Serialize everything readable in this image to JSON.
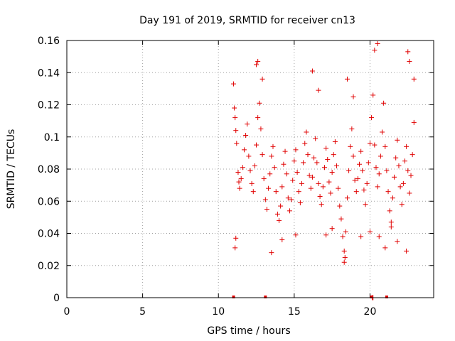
{
  "chart_data": {
    "type": "scatter",
    "title": "Day 191 of 2019, SRMTID for receiver cn13",
    "xlabel": "GPS time / hours",
    "ylabel": "SRMTID / TECUs",
    "xlim": [
      0,
      24.2
    ],
    "ylim": [
      0,
      0.16
    ],
    "x_ticks": [
      0,
      5,
      10,
      15,
      20
    ],
    "x_tick_labels": [
      "0",
      "5",
      "10",
      "15",
      "20"
    ],
    "y_ticks": [
      0,
      0.02,
      0.04,
      0.06,
      0.08,
      0.1,
      0.12,
      0.14,
      0.16
    ],
    "y_tick_labels": [
      "0",
      "0.02",
      "0.04",
      "0.06",
      "0.08",
      "0.1",
      "0.12",
      "0.14",
      "0.16"
    ],
    "grid": true,
    "marker": "plus",
    "color": "#e00000",
    "series": [
      {
        "name": "SRMTID",
        "points": [
          [
            11.0,
            0.133
          ],
          [
            11.05,
            0.118
          ],
          [
            11.1,
            0.112
          ],
          [
            11.15,
            0.104
          ],
          [
            11.2,
            0.096
          ],
          [
            11.3,
            0.078
          ],
          [
            11.35,
            0.072
          ],
          [
            11.4,
            0.068
          ],
          [
            11.5,
            0.074
          ],
          [
            11.6,
            0.081
          ],
          [
            11.7,
            0.092
          ],
          [
            11.8,
            0.101
          ],
          [
            11.9,
            0.108
          ],
          [
            12.0,
            0.088
          ],
          [
            12.1,
            0.079
          ],
          [
            12.2,
            0.071
          ],
          [
            12.3,
            0.066
          ],
          [
            12.4,
            0.082
          ],
          [
            12.5,
            0.095
          ],
          [
            12.6,
            0.112
          ],
          [
            12.7,
            0.121
          ],
          [
            12.8,
            0.105
          ],
          [
            12.9,
            0.089
          ],
          [
            13.0,
            0.074
          ],
          [
            13.1,
            0.061
          ],
          [
            13.2,
            0.055
          ],
          [
            13.3,
            0.068
          ],
          [
            13.4,
            0.077
          ],
          [
            13.5,
            0.088
          ],
          [
            13.6,
            0.094
          ],
          [
            13.7,
            0.081
          ],
          [
            13.8,
            0.066
          ],
          [
            13.9,
            0.052
          ],
          [
            14.0,
            0.048
          ],
          [
            14.1,
            0.057
          ],
          [
            14.2,
            0.069
          ],
          [
            14.3,
            0.083
          ],
          [
            14.4,
            0.091
          ],
          [
            14.5,
            0.077
          ],
          [
            14.6,
            0.062
          ],
          [
            14.7,
            0.054
          ],
          [
            14.8,
            0.061
          ],
          [
            14.9,
            0.073
          ],
          [
            15.0,
            0.085
          ],
          [
            15.1,
            0.092
          ],
          [
            15.2,
            0.078
          ],
          [
            15.3,
            0.066
          ],
          [
            15.4,
            0.059
          ],
          [
            15.5,
            0.071
          ],
          [
            15.6,
            0.084
          ],
          [
            15.7,
            0.096
          ],
          [
            15.8,
            0.103
          ],
          [
            15.9,
            0.089
          ],
          [
            16.0,
            0.076
          ],
          [
            16.1,
            0.068
          ],
          [
            16.2,
            0.075
          ],
          [
            16.3,
            0.087
          ],
          [
            16.4,
            0.099
          ],
          [
            16.5,
            0.084
          ],
          [
            16.6,
            0.071
          ],
          [
            16.7,
            0.063
          ],
          [
            16.8,
            0.058
          ],
          [
            16.9,
            0.069
          ],
          [
            17.0,
            0.081
          ],
          [
            17.1,
            0.093
          ],
          [
            17.2,
            0.086
          ],
          [
            17.3,
            0.072
          ],
          [
            17.4,
            0.065
          ],
          [
            17.5,
            0.078
          ],
          [
            17.6,
            0.089
          ],
          [
            17.7,
            0.097
          ],
          [
            17.8,
            0.082
          ],
          [
            17.9,
            0.068
          ],
          [
            18.0,
            0.057
          ],
          [
            18.1,
            0.049
          ],
          [
            18.2,
            0.038
          ],
          [
            18.3,
            0.029
          ],
          [
            18.4,
            0.041
          ],
          [
            18.5,
            0.062
          ],
          [
            18.6,
            0.079
          ],
          [
            18.7,
            0.094
          ],
          [
            18.8,
            0.105
          ],
          [
            18.9,
            0.088
          ],
          [
            19.0,
            0.073
          ],
          [
            19.1,
            0.066
          ],
          [
            19.2,
            0.074
          ],
          [
            19.3,
            0.083
          ],
          [
            19.4,
            0.091
          ],
          [
            19.5,
            0.079
          ],
          [
            19.6,
            0.067
          ],
          [
            19.7,
            0.058
          ],
          [
            19.8,
            0.071
          ],
          [
            19.9,
            0.084
          ],
          [
            20.0,
            0.096
          ],
          [
            20.1,
            0.112
          ],
          [
            20.2,
            0.126
          ],
          [
            20.3,
            0.095
          ],
          [
            20.4,
            0.081
          ],
          [
            20.5,
            0.069
          ],
          [
            20.6,
            0.077
          ],
          [
            20.7,
            0.088
          ],
          [
            20.8,
            0.103
          ],
          [
            20.9,
            0.121
          ],
          [
            21.0,
            0.094
          ],
          [
            21.1,
            0.079
          ],
          [
            21.2,
            0.066
          ],
          [
            21.3,
            0.054
          ],
          [
            21.4,
            0.047
          ],
          [
            21.5,
            0.062
          ],
          [
            21.6,
            0.075
          ],
          [
            21.7,
            0.087
          ],
          [
            21.8,
            0.098
          ],
          [
            21.9,
            0.082
          ],
          [
            22.0,
            0.069
          ],
          [
            22.1,
            0.058
          ],
          [
            22.2,
            0.071
          ],
          [
            22.3,
            0.085
          ],
          [
            22.4,
            0.094
          ],
          [
            22.5,
            0.079
          ],
          [
            22.6,
            0.065
          ],
          [
            22.7,
            0.076
          ],
          [
            22.8,
            0.089
          ],
          [
            22.9,
            0.109
          ],
          [
            11.1,
            0.031
          ],
          [
            11.15,
            0.037
          ],
          [
            12.5,
            0.145
          ],
          [
            12.6,
            0.147
          ],
          [
            12.9,
            0.136
          ],
          [
            13.5,
            0.028
          ],
          [
            14.2,
            0.036
          ],
          [
            15.1,
            0.039
          ],
          [
            16.2,
            0.141
          ],
          [
            16.6,
            0.129
          ],
          [
            17.1,
            0.039
          ],
          [
            17.5,
            0.043
          ],
          [
            18.3,
            0.022
          ],
          [
            18.35,
            0.025
          ],
          [
            18.5,
            0.136
          ],
          [
            18.9,
            0.125
          ],
          [
            19.4,
            0.038
          ],
          [
            20.0,
            0.041
          ],
          [
            20.3,
            0.154
          ],
          [
            20.5,
            0.158
          ],
          [
            20.6,
            0.038
          ],
          [
            21.0,
            0.031
          ],
          [
            21.4,
            0.044
          ],
          [
            21.8,
            0.035
          ],
          [
            22.4,
            0.029
          ],
          [
            22.5,
            0.153
          ],
          [
            22.6,
            0.147
          ],
          [
            22.9,
            0.136
          ],
          [
            20.15,
            0.0
          ],
          [
            20.2,
            0.0
          ]
        ]
      }
    ],
    "zero_markers_x": [
      11.0,
      13.1,
      20.1,
      21.1
    ]
  }
}
